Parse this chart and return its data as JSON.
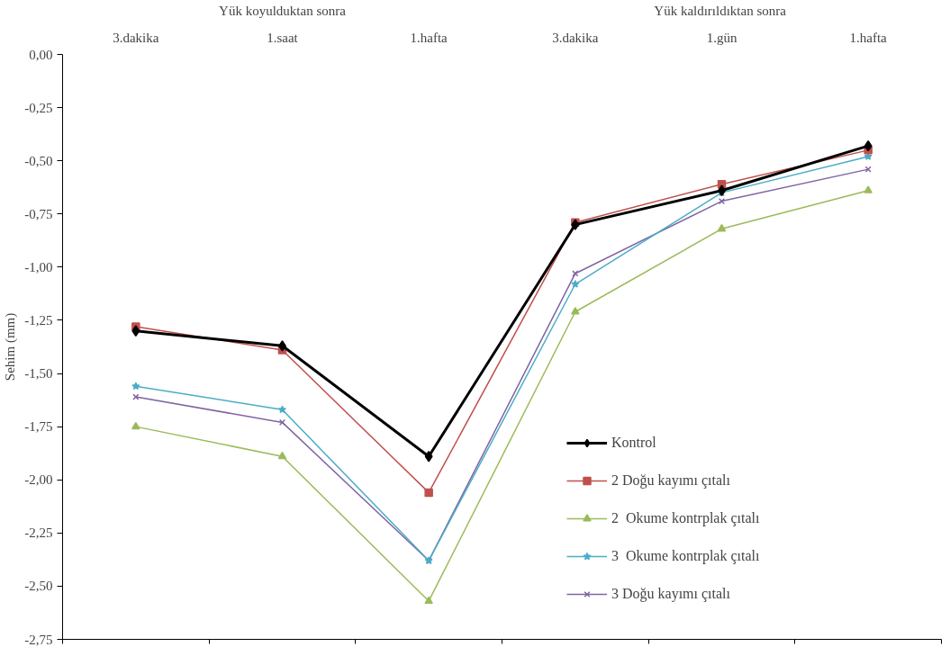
{
  "chart_data": {
    "type": "line",
    "categories": [
      "3.dakika",
      "1.saat",
      "1.hafta",
      "3.dakika",
      "1.gün",
      "1.hafta"
    ],
    "ylabel": "Sehim (mm)",
    "annotations": [
      "Yük koyulduktan sonra",
      "Yük kaldırıldıktan  sonra"
    ],
    "ylim": [
      -2.75,
      0
    ],
    "yticks": [
      {
        "value": 0,
        "label": "0,00"
      },
      {
        "value": -0.25,
        "label": "-0,25"
      },
      {
        "value": -0.5,
        "label": "-0,50"
      },
      {
        "value": -0.75,
        "label": "-0,75"
      },
      {
        "value": -1.0,
        "label": "-1,00"
      },
      {
        "value": -1.25,
        "label": "-1,25"
      },
      {
        "value": -1.5,
        "label": "-1,50"
      },
      {
        "value": -1.75,
        "label": "-1,75"
      },
      {
        "value": -2.0,
        "label": "-2,00"
      },
      {
        "value": -2.25,
        "label": "-2,25"
      },
      {
        "value": -2.5,
        "label": "-2,50"
      },
      {
        "value": -2.75,
        "label": "-2,75"
      }
    ],
    "grid": false,
    "legend": "right",
    "series": [
      {
        "name": "Kontrol",
        "color": "#000000",
        "marker": "diamond",
        "values": [
          -1.3,
          -1.37,
          -1.89,
          -0.8,
          -0.64,
          -0.43
        ]
      },
      {
        "name": "2 Doğu kayımı çıtalı",
        "color": "#c0504d",
        "marker": "square",
        "values": [
          -1.28,
          -1.39,
          -2.06,
          -0.79,
          -0.61,
          -0.45
        ]
      },
      {
        "name": "2  Okume kontrplak çıtalı",
        "color": "#9bbb59",
        "marker": "triangle",
        "values": [
          -1.75,
          -1.89,
          -2.57,
          -1.21,
          -0.82,
          -0.64
        ]
      },
      {
        "name": "3  Okume kontrplak çıtalı",
        "color": "#4bacc6",
        "marker": "star",
        "values": [
          -1.56,
          -1.67,
          -2.38,
          -1.08,
          -0.65,
          -0.48
        ]
      },
      {
        "name": "3 Doğu kayımı çıtalı",
        "color": "#8064a2",
        "marker": "cross",
        "values": [
          -1.61,
          -1.73,
          -2.38,
          -1.03,
          -0.69,
          -0.54
        ]
      }
    ]
  }
}
